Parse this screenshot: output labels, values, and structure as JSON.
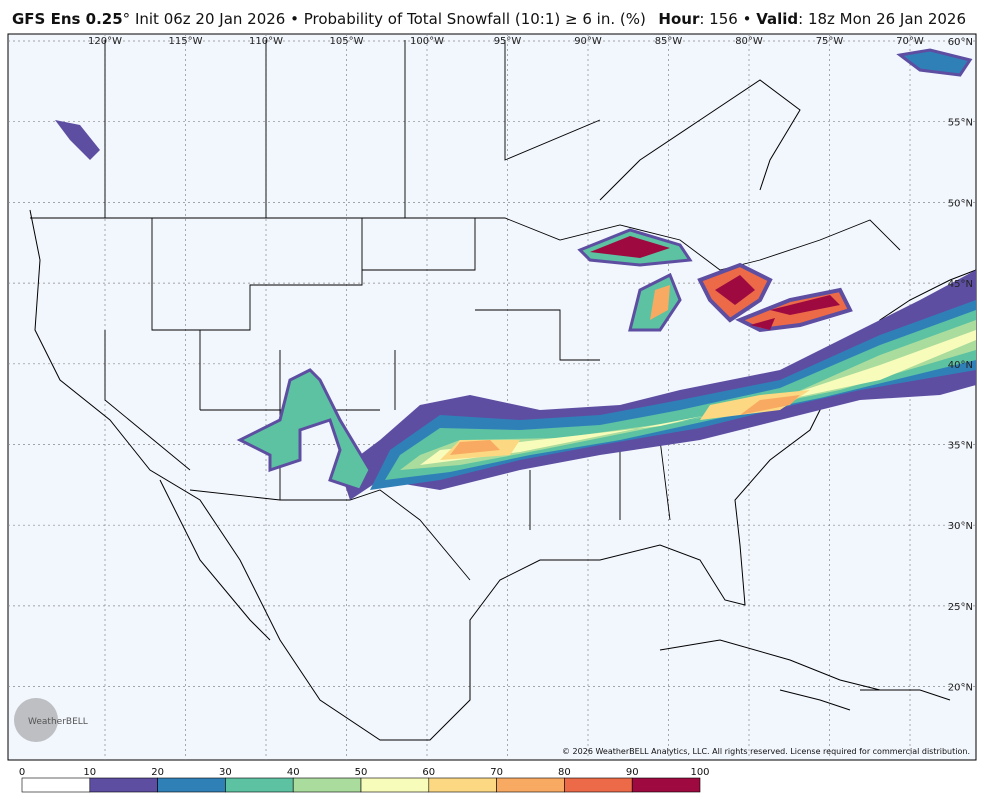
{
  "header": {
    "model": "GFS Ens 0.25",
    "description": "° Init 06z 20 Jan 2026 • Probability of Total Snowfall (10:1) ≥ 6 in. (%)",
    "hour_label": "Hour",
    "hour_value": ": 156 • ",
    "valid_label": "Valid",
    "valid_value": ": 18z Mon 26 Jan 2026"
  },
  "map": {
    "lon_labels": [
      "120°W",
      "115°W",
      "110°W",
      "105°W",
      "100°W",
      "95°W",
      "90°W",
      "85°W",
      "80°W",
      "75°W",
      "70°W"
    ],
    "lat_labels": [
      "60°N",
      "55°N",
      "50°N",
      "45°N",
      "40°N",
      "35°N",
      "30°N",
      "25°N",
      "20°N"
    ],
    "copyright": "© 2026 WeatherBELL Analytics, LLC. All rights reserved. License required for commercial distribution.",
    "logo": "WeatherBELL"
  },
  "legend": {
    "ticks": [
      "0",
      "10",
      "20",
      "30",
      "40",
      "50",
      "60",
      "70",
      "80",
      "90",
      "100"
    ],
    "colors": [
      "#ffffff",
      "#5d4ea2",
      "#3080b8",
      "#5cc2a2",
      "#aadc9e",
      "#f8fcba",
      "#fcd882",
      "#f8aa62",
      "#ec6a48",
      "#9e0a40"
    ]
  }
}
